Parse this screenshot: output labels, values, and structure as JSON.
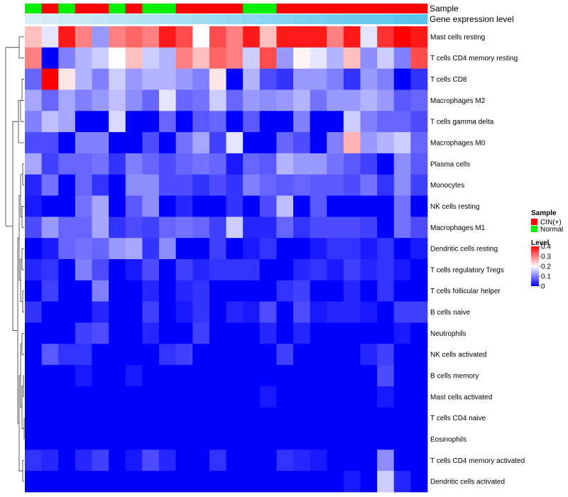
{
  "chart_data": {
    "type": "heatmap",
    "title": "",
    "annotation_tracks": [
      {
        "name": "Sample",
        "label": "Sample"
      },
      {
        "name": "Gene expression level",
        "label": "Gene expression level"
      }
    ],
    "sample_groups": [
      "Normal",
      "CIN(+)",
      "Normal",
      "CIN(+)",
      "CIN(+)",
      "Normal",
      "CIN(+)",
      "Normal",
      "Normal",
      "CIN(+)",
      "CIN(+)",
      "CIN(+)",
      "CIN(+)",
      "Normal",
      "Normal",
      "CIN(+)",
      "CIN(+)",
      "CIN(+)",
      "CIN(+)",
      "CIN(+)",
      "CIN(+)",
      "CIN(+)",
      "CIN(+)",
      "CIN(+)"
    ],
    "expression_level_track": [
      0.0,
      0.04,
      0.09,
      0.13,
      0.17,
      0.22,
      0.26,
      0.3,
      0.35,
      0.39,
      0.43,
      0.48,
      0.52,
      0.57,
      0.61,
      0.65,
      0.7,
      0.74,
      0.78,
      0.83,
      0.87,
      0.91,
      0.96,
      1.0
    ],
    "rows": [
      "Mast cells resting",
      "T cells CD4 memory resting",
      "T cells CD8",
      "Macrophages M2",
      "T cells gamma delta",
      "Macrophages M0",
      "Plasma cells",
      "Monocytes",
      "NK cells resting",
      "Macrophages M1",
      "Dendritic cells resting",
      "T cells regulatory  Tregs",
      "T cells follicular helper",
      "B cells naive",
      "Neutrophils",
      "NK cells activated",
      "B cells memory",
      "Mast cells activated",
      "T cells CD4 naive",
      "Eosinophils",
      "T cells CD4 memory activated",
      "Dendritic cells activated"
    ],
    "values": [
      [
        0.25,
        0.18,
        0.38,
        0.3,
        0.12,
        0.3,
        0.32,
        0.3,
        0.38,
        0.34,
        0.2,
        0.34,
        0.3,
        0.38,
        0.25,
        0.38,
        0.38,
        0.38,
        0.3,
        0.38,
        0.18,
        0.36,
        0.4,
        0.38
      ],
      [
        0.3,
        0.0,
        0.1,
        0.14,
        0.16,
        0.2,
        0.25,
        0.16,
        0.14,
        0.3,
        0.25,
        0.32,
        0.3,
        0.16,
        0.34,
        0.12,
        0.21,
        0.18,
        0.14,
        0.25,
        0.11,
        0.16,
        0.1,
        0.34
      ],
      [
        0.08,
        0.4,
        0.22,
        0.14,
        0.1,
        0.16,
        0.12,
        0.14,
        0.14,
        0.12,
        0.1,
        0.22,
        0.0,
        0.14,
        0.06,
        0.04,
        0.12,
        0.12,
        0.1,
        0.04,
        0.12,
        0.1,
        0.0,
        0.04
      ],
      [
        0.13,
        0.08,
        0.13,
        0.1,
        0.12,
        0.15,
        0.11,
        0.08,
        0.18,
        0.08,
        0.09,
        0.16,
        0.08,
        0.12,
        0.11,
        0.12,
        0.14,
        0.09,
        0.12,
        0.12,
        0.14,
        0.12,
        0.07,
        0.08
      ],
      [
        0.1,
        0.15,
        0.13,
        0.0,
        0.0,
        0.17,
        0.0,
        0.0,
        0.08,
        0.0,
        0.07,
        0.08,
        0.0,
        0.07,
        0.0,
        0.0,
        0.1,
        0.0,
        0.0,
        0.16,
        0.1,
        0.08,
        0.08,
        0.06
      ],
      [
        0.06,
        0.06,
        0.0,
        0.1,
        0.1,
        0.0,
        0.0,
        0.06,
        0.0,
        0.09,
        0.13,
        0.05,
        0.18,
        0.0,
        0.0,
        0.08,
        0.06,
        0.0,
        0.1,
        0.26,
        0.12,
        0.14,
        0.16,
        0.08
      ],
      [
        0.13,
        0.05,
        0.08,
        0.08,
        0.09,
        0.04,
        0.1,
        0.08,
        0.06,
        0.08,
        0.09,
        0.08,
        0.02,
        0.08,
        0.07,
        0.14,
        0.12,
        0.12,
        0.09,
        0.07,
        0.05,
        0.0,
        0.11,
        0.07
      ],
      [
        0.03,
        0.09,
        0.0,
        0.08,
        0.04,
        0.0,
        0.11,
        0.11,
        0.06,
        0.06,
        0.04,
        0.06,
        0.04,
        0.1,
        0.08,
        0.07,
        0.08,
        0.07,
        0.07,
        0.06,
        0.09,
        0.04,
        0.11,
        0.05
      ],
      [
        0.02,
        0.0,
        0.0,
        0.09,
        0.13,
        0.0,
        0.07,
        0.11,
        0.0,
        0.03,
        0.0,
        0.0,
        0.04,
        0.0,
        0.06,
        0.15,
        0.0,
        0.07,
        0.0,
        0.0,
        0.0,
        0.0,
        0.09,
        0.0
      ],
      [
        0.06,
        0.12,
        0.08,
        0.08,
        0.13,
        0.04,
        0.06,
        0.05,
        0.08,
        0.09,
        0.08,
        0.05,
        0.16,
        0.03,
        0.03,
        0.08,
        0.04,
        0.06,
        0.06,
        0.06,
        0.05,
        0.0,
        0.09,
        0.06
      ],
      [
        0.0,
        0.02,
        0.08,
        0.09,
        0.08,
        0.12,
        0.13,
        0.04,
        0.11,
        0.0,
        0.0,
        0.05,
        0.0,
        0.02,
        0.04,
        0.0,
        0.0,
        0.02,
        0.04,
        0.04,
        0.02,
        0.04,
        0.0,
        0.02
      ],
      [
        0.03,
        0.04,
        0.0,
        0.1,
        0.06,
        0.0,
        0.02,
        0.06,
        0.0,
        0.05,
        0.03,
        0.04,
        0.04,
        0.04,
        0.0,
        0.0,
        0.03,
        0.04,
        0.02,
        0.05,
        0.03,
        0.04,
        0.02,
        0.0
      ],
      [
        0.0,
        0.05,
        0.0,
        0.0,
        0.1,
        0.0,
        0.0,
        0.03,
        0.0,
        0.03,
        0.04,
        0.0,
        0.0,
        0.0,
        0.0,
        0.04,
        0.05,
        0.0,
        0.0,
        0.03,
        0.0,
        0.04,
        0.0,
        0.0
      ],
      [
        0.04,
        0.0,
        0.0,
        0.0,
        0.03,
        0.0,
        0.0,
        0.05,
        0.0,
        0.02,
        0.04,
        0.0,
        0.03,
        0.02,
        0.06,
        0.0,
        0.06,
        0.02,
        0.03,
        0.03,
        0.02,
        0.0,
        0.05,
        0.05
      ],
      [
        0.0,
        0.0,
        0.0,
        0.05,
        0.06,
        0.0,
        0.0,
        0.03,
        0.0,
        0.0,
        0.05,
        0.0,
        0.0,
        0.0,
        0.03,
        0.0,
        0.03,
        0.0,
        0.0,
        0.0,
        0.0,
        0.0,
        0.02,
        0.0
      ],
      [
        0.0,
        0.07,
        0.04,
        0.04,
        0.0,
        0.0,
        0.0,
        0.0,
        0.04,
        0.05,
        0.0,
        0.0,
        0.0,
        0.0,
        0.0,
        0.05,
        0.0,
        0.0,
        0.0,
        0.0,
        0.03,
        0.05,
        0.0,
        0.0
      ],
      [
        0.0,
        0.0,
        0.0,
        0.02,
        0.0,
        0.0,
        0.02,
        0.0,
        0.0,
        0.0,
        0.0,
        0.0,
        0.0,
        0.0,
        0.0,
        0.0,
        0.0,
        0.0,
        0.0,
        0.0,
        0.0,
        0.06,
        0.0,
        0.0
      ],
      [
        0.0,
        0.0,
        0.0,
        0.0,
        0.0,
        0.0,
        0.0,
        0.0,
        0.0,
        0.0,
        0.0,
        0.0,
        0.0,
        0.0,
        0.02,
        0.0,
        0.0,
        0.0,
        0.0,
        0.0,
        0.0,
        0.02,
        0.0,
        0.0
      ],
      [
        0.0,
        0.0,
        0.0,
        0.0,
        0.0,
        0.0,
        0.0,
        0.0,
        0.0,
        0.0,
        0.0,
        0.0,
        0.0,
        0.0,
        0.0,
        0.0,
        0.0,
        0.0,
        0.0,
        0.0,
        0.0,
        0.0,
        0.0,
        0.0
      ],
      [
        0.0,
        0.0,
        0.0,
        0.0,
        0.0,
        0.0,
        0.0,
        0.0,
        0.0,
        0.0,
        0.0,
        0.0,
        0.0,
        0.0,
        0.0,
        0.0,
        0.0,
        0.0,
        0.0,
        0.0,
        0.0,
        0.0,
        0.0,
        0.0
      ],
      [
        0.04,
        0.03,
        0.0,
        0.03,
        0.05,
        0.0,
        0.02,
        0.06,
        0.03,
        0.0,
        0.0,
        0.04,
        0.0,
        0.0,
        0.0,
        0.04,
        0.03,
        0.02,
        0.0,
        0.0,
        0.0,
        0.11,
        0.0,
        0.0
      ],
      [
        0.0,
        0.0,
        0.0,
        0.0,
        0.0,
        0.0,
        0.0,
        0.0,
        0.0,
        0.0,
        0.0,
        0.0,
        0.0,
        0.0,
        0.0,
        0.0,
        0.0,
        0.0,
        0.0,
        0.02,
        0.0,
        0.16,
        0.03,
        0.0
      ]
    ],
    "color_scale": {
      "min": 0,
      "max": 0.4,
      "stops": [
        {
          "value": 0,
          "color": "#0000ff"
        },
        {
          "value": 0.2,
          "color": "#ffffff"
        },
        {
          "value": 0.4,
          "color": "#ff0000"
        }
      ]
    },
    "legends": {
      "sample": {
        "title": "Sample",
        "items": [
          {
            "label": "CIN(+)",
            "color": "#ff0000"
          },
          {
            "label": "Normal",
            "color": "#00ee00"
          }
        ]
      },
      "level": {
        "title": "Level",
        "ticks": [
          {
            "value": 0.4,
            "label": "0.4"
          },
          {
            "value": 0.3,
            "label": "0.3"
          },
          {
            "value": 0.2,
            "label": "0.2"
          },
          {
            "value": 0.1,
            "label": "0.1"
          },
          {
            "value": 0,
            "label": "0"
          }
        ]
      }
    },
    "expression_track_colors": {
      "low": "#d9eef8",
      "high": "#56c4ec"
    },
    "dendrogram": "row"
  }
}
